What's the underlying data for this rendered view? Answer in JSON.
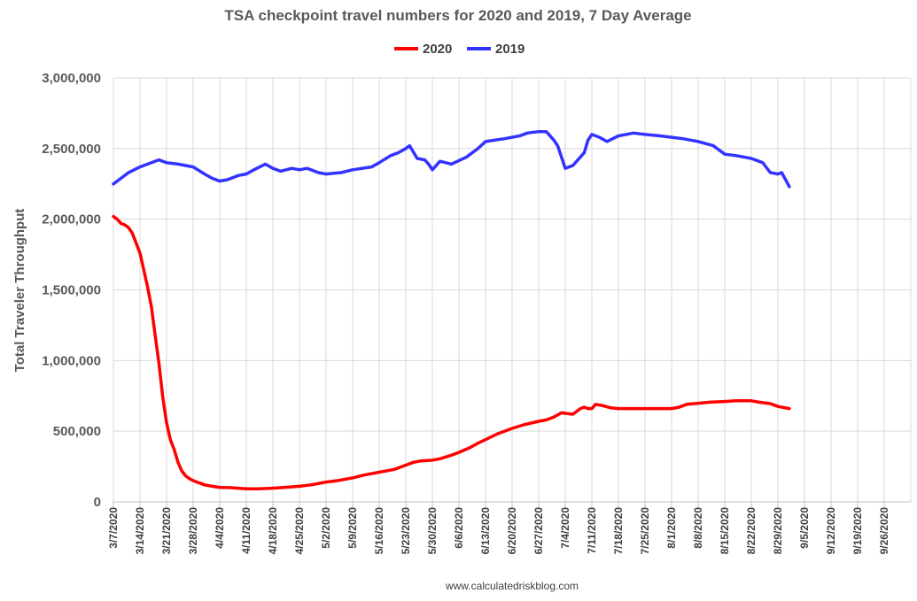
{
  "chart_data": {
    "type": "line",
    "title": "TSA checkpoint travel numbers for 2020 and 2019, 7 Day Average",
    "xlabel": "",
    "ylabel": "Total Traveler Throughput",
    "source": "www.calculatedriskblog.com",
    "ylim": [
      0,
      3000000
    ],
    "yticks": [
      0,
      500000,
      1000000,
      1500000,
      2000000,
      2500000,
      3000000
    ],
    "ytick_labels": [
      "0",
      "500,000",
      "1,000,000",
      "1,500,000",
      "2,000,000",
      "2,500,000",
      "3,000,000"
    ],
    "xlim": [
      "2020-03-07",
      "2020-10-03"
    ],
    "xtick_labels": [
      "3/7/2020",
      "3/14/2020",
      "3/21/2020",
      "3/28/2020",
      "4/4/2020",
      "4/11/2020",
      "4/18/2020",
      "4/25/2020",
      "5/2/2020",
      "5/9/2020",
      "5/16/2020",
      "5/23/2020",
      "5/30/2020",
      "6/6/2020",
      "6/13/2020",
      "6/20/2020",
      "6/27/2020",
      "7/4/2020",
      "7/11/2020",
      "7/18/2020",
      "7/25/2020",
      "8/1/2020",
      "8/8/2020",
      "8/15/2020",
      "8/22/2020",
      "8/29/2020",
      "9/5/2020",
      "9/12/2020",
      "9/19/2020",
      "9/26/2020"
    ],
    "grid": true,
    "legend_position": "top-center",
    "series": [
      {
        "name": "2020",
        "color": "#ff0000",
        "x": [
          "2020-03-07",
          "2020-03-08",
          "2020-03-09",
          "2020-03-10",
          "2020-03-11",
          "2020-03-12",
          "2020-03-13",
          "2020-03-14",
          "2020-03-15",
          "2020-03-16",
          "2020-03-17",
          "2020-03-18",
          "2020-03-19",
          "2020-03-20",
          "2020-03-21",
          "2020-03-22",
          "2020-03-23",
          "2020-03-24",
          "2020-03-25",
          "2020-03-26",
          "2020-03-27",
          "2020-03-28",
          "2020-03-29",
          "2020-03-30",
          "2020-03-31",
          "2020-04-02",
          "2020-04-04",
          "2020-04-07",
          "2020-04-11",
          "2020-04-14",
          "2020-04-17",
          "2020-04-20",
          "2020-04-25",
          "2020-04-28",
          "2020-05-02",
          "2020-05-05",
          "2020-05-09",
          "2020-05-12",
          "2020-05-16",
          "2020-05-20",
          "2020-05-23",
          "2020-05-25",
          "2020-05-27",
          "2020-05-30",
          "2020-06-01",
          "2020-06-04",
          "2020-06-06",
          "2020-06-09",
          "2020-06-11",
          "2020-06-13",
          "2020-06-16",
          "2020-06-20",
          "2020-06-23",
          "2020-06-27",
          "2020-06-29",
          "2020-07-01",
          "2020-07-03",
          "2020-07-06",
          "2020-07-08",
          "2020-07-09",
          "2020-07-10",
          "2020-07-11",
          "2020-07-12",
          "2020-07-14",
          "2020-07-16",
          "2020-07-18",
          "2020-07-25",
          "2020-08-01",
          "2020-08-03",
          "2020-08-05",
          "2020-08-07",
          "2020-08-09",
          "2020-08-11",
          "2020-08-15",
          "2020-08-18",
          "2020-08-22",
          "2020-08-24",
          "2020-08-27",
          "2020-08-29",
          "2020-09-01"
        ],
        "values": [
          2020000,
          2000000,
          1970000,
          1960000,
          1940000,
          1900000,
          1830000,
          1760000,
          1640000,
          1520000,
          1380000,
          1180000,
          980000,
          740000,
          560000,
          440000,
          370000,
          280000,
          220000,
          185000,
          165000,
          150000,
          140000,
          130000,
          120000,
          110000,
          103000,
          100000,
          92000,
          92000,
          95000,
          100000,
          110000,
          120000,
          140000,
          150000,
          170000,
          190000,
          210000,
          230000,
          260000,
          280000,
          290000,
          295000,
          305000,
          330000,
          350000,
          385000,
          415000,
          440000,
          480000,
          520000,
          545000,
          570000,
          580000,
          600000,
          630000,
          620000,
          660000,
          670000,
          660000,
          660000,
          690000,
          680000,
          665000,
          660000,
          660000,
          660000,
          670000,
          690000,
          695000,
          700000,
          705000,
          710000,
          715000,
          715000,
          705000,
          695000,
          675000,
          660000
        ]
      },
      {
        "name": "2019",
        "color": "#3333ff",
        "x": [
          "2020-03-07",
          "2020-03-09",
          "2020-03-11",
          "2020-03-14",
          "2020-03-16",
          "2020-03-19",
          "2020-03-21",
          "2020-03-24",
          "2020-03-28",
          "2020-03-31",
          "2020-04-02",
          "2020-04-04",
          "2020-04-06",
          "2020-04-09",
          "2020-04-11",
          "2020-04-13",
          "2020-04-16",
          "2020-04-18",
          "2020-04-20",
          "2020-04-23",
          "2020-04-25",
          "2020-04-27",
          "2020-04-30",
          "2020-05-02",
          "2020-05-06",
          "2020-05-09",
          "2020-05-14",
          "2020-05-16",
          "2020-05-19",
          "2020-05-21",
          "2020-05-23",
          "2020-05-24",
          "2020-05-26",
          "2020-05-28",
          "2020-05-29",
          "2020-05-30",
          "2020-06-01",
          "2020-06-04",
          "2020-06-08",
          "2020-06-11",
          "2020-06-13",
          "2020-06-18",
          "2020-06-22",
          "2020-06-24",
          "2020-06-27",
          "2020-06-29",
          "2020-07-01",
          "2020-07-02",
          "2020-07-04",
          "2020-07-06",
          "2020-07-08",
          "2020-07-09",
          "2020-07-10",
          "2020-07-11",
          "2020-07-13",
          "2020-07-15",
          "2020-07-18",
          "2020-07-22",
          "2020-07-25",
          "2020-07-29",
          "2020-08-01",
          "2020-08-04",
          "2020-08-06",
          "2020-08-08",
          "2020-08-12",
          "2020-08-15",
          "2020-08-18",
          "2020-08-22",
          "2020-08-25",
          "2020-08-27",
          "2020-08-29",
          "2020-08-30",
          "2020-09-01"
        ],
        "values": [
          2250000,
          2290000,
          2330000,
          2370000,
          2390000,
          2420000,
          2400000,
          2390000,
          2370000,
          2320000,
          2290000,
          2270000,
          2280000,
          2310000,
          2320000,
          2350000,
          2390000,
          2360000,
          2340000,
          2360000,
          2350000,
          2360000,
          2330000,
          2320000,
          2330000,
          2350000,
          2370000,
          2400000,
          2450000,
          2470000,
          2500000,
          2520000,
          2430000,
          2420000,
          2390000,
          2350000,
          2410000,
          2390000,
          2440000,
          2500000,
          2550000,
          2570000,
          2590000,
          2610000,
          2620000,
          2620000,
          2560000,
          2520000,
          2360000,
          2380000,
          2440000,
          2470000,
          2560000,
          2600000,
          2580000,
          2550000,
          2590000,
          2610000,
          2600000,
          2590000,
          2580000,
          2570000,
          2560000,
          2550000,
          2520000,
          2460000,
          2450000,
          2430000,
          2400000,
          2330000,
          2320000,
          2330000,
          2230000
        ]
      }
    ]
  }
}
